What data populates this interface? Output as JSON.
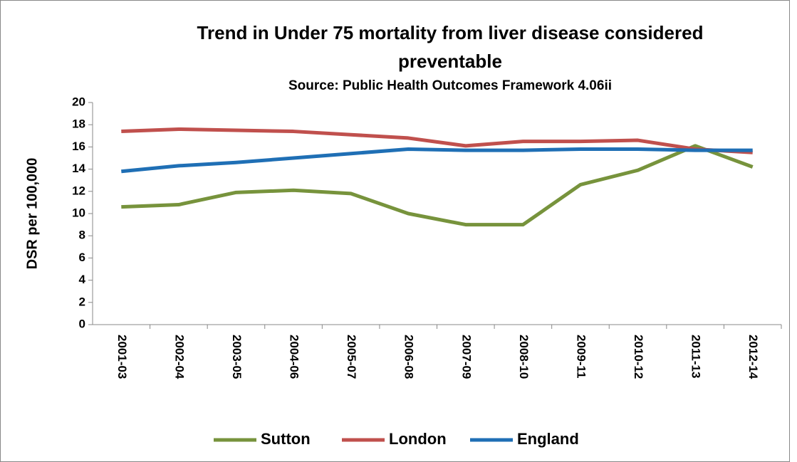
{
  "chart_data": {
    "type": "line",
    "title": "Trend in Under 75 mortality from liver disease considered preventable",
    "subtitle": "Source: Public Health Outcomes Framework 4.06ii",
    "y_label": "DSR per 100,000",
    "categories": [
      "2001-03",
      "2002-04",
      "2003-05",
      "2004-06",
      "2005-07",
      "2006-08",
      "2007-09",
      "2008-10",
      "2009-11",
      "2010-12",
      "2011-13",
      "2012-14"
    ],
    "series": [
      {
        "name": "Sutton",
        "color": "#77933c",
        "values": [
          10.6,
          10.8,
          11.9,
          12.1,
          11.8,
          10.0,
          9.0,
          9.0,
          12.6,
          13.9,
          16.1,
          14.2
        ]
      },
      {
        "name": "London",
        "color": "#c0504d",
        "values": [
          17.4,
          17.6,
          17.5,
          17.4,
          17.1,
          16.8,
          16.1,
          16.5,
          16.5,
          16.6,
          15.8,
          15.5
        ]
      },
      {
        "name": "England",
        "color": "#1f6fb5",
        "values": [
          13.8,
          14.3,
          14.6,
          15.0,
          15.4,
          15.8,
          15.7,
          15.7,
          15.8,
          15.8,
          15.7,
          15.7
        ]
      }
    ],
    "ylim": [
      0,
      20
    ],
    "yticks": [
      0,
      2,
      4,
      6,
      8,
      10,
      12,
      14,
      16,
      18,
      20
    ],
    "grid": false,
    "legend": "bottom"
  }
}
